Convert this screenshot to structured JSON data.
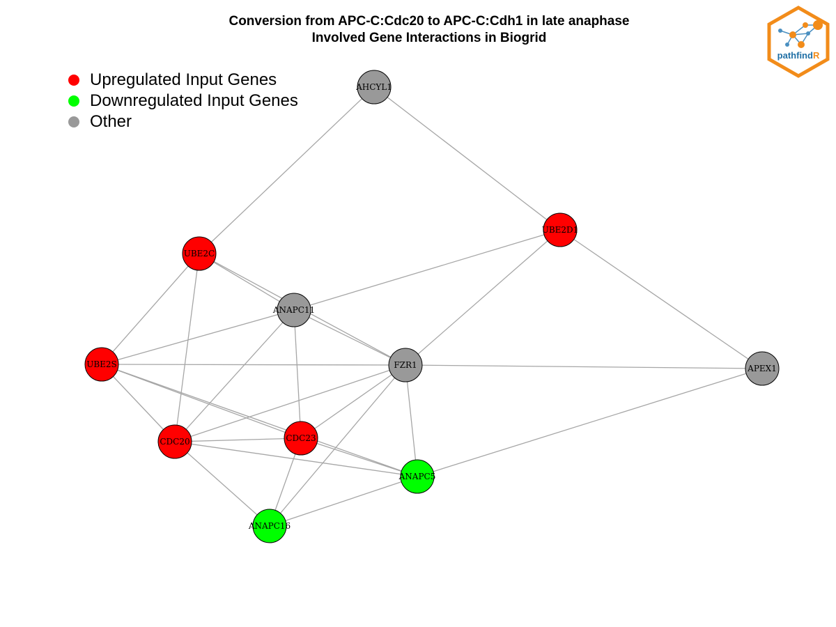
{
  "title": {
    "line1": "Conversion from APC-C:Cdc20 to APC-C:Cdh1 in late anaphase",
    "line2": "Involved Gene Interactions in Biogrid"
  },
  "legend": [
    {
      "label": "Upregulated Input Genes",
      "color": "#ff0000"
    },
    {
      "label": "Downregulated Input Genes",
      "color": "#00ff00"
    },
    {
      "label": "Other",
      "color": "#999999"
    }
  ],
  "colors": {
    "up": "#ff0000",
    "down": "#00ff00",
    "other": "#999999",
    "edge": "#a6a6a6",
    "node_border": "#000000"
  },
  "logo": {
    "text_main": "pathfind",
    "text_accent": "R",
    "accent_color": "#f28c1a",
    "text_color": "#1f6fa5"
  },
  "network": {
    "nodes": [
      {
        "id": "AHCYL1",
        "label": "AHCYL1",
        "group": "other"
      },
      {
        "id": "UBE2D1",
        "label": "UBE2D1",
        "group": "up"
      },
      {
        "id": "UBE2C",
        "label": "UBE2C",
        "group": "up"
      },
      {
        "id": "ANAPC11",
        "label": "ANAPC11",
        "group": "other"
      },
      {
        "id": "UBE2S",
        "label": "UBE2S",
        "group": "up"
      },
      {
        "id": "FZR1",
        "label": "FZR1",
        "group": "other"
      },
      {
        "id": "APEX1",
        "label": "APEX1",
        "group": "other"
      },
      {
        "id": "CDC20",
        "label": "CDC20",
        "group": "up"
      },
      {
        "id": "CDC23",
        "label": "CDC23",
        "group": "up"
      },
      {
        "id": "ANAPC5",
        "label": "ANAPC5",
        "group": "down"
      },
      {
        "id": "ANAPC16",
        "label": "ANAPC16",
        "group": "down"
      }
    ],
    "edges": [
      [
        "AHCYL1",
        "UBE2C"
      ],
      [
        "AHCYL1",
        "UBE2D1"
      ],
      [
        "UBE2D1",
        "ANAPC11"
      ],
      [
        "UBE2D1",
        "FZR1"
      ],
      [
        "UBE2D1",
        "APEX1"
      ],
      [
        "UBE2C",
        "ANAPC11"
      ],
      [
        "UBE2C",
        "FZR1"
      ],
      [
        "UBE2C",
        "UBE2S"
      ],
      [
        "UBE2C",
        "CDC20"
      ],
      [
        "ANAPC11",
        "UBE2S"
      ],
      [
        "ANAPC11",
        "FZR1"
      ],
      [
        "ANAPC11",
        "CDC20"
      ],
      [
        "ANAPC11",
        "CDC23"
      ],
      [
        "UBE2S",
        "FZR1"
      ],
      [
        "UBE2S",
        "CDC20"
      ],
      [
        "UBE2S",
        "CDC23"
      ],
      [
        "UBE2S",
        "ANAPC5"
      ],
      [
        "FZR1",
        "APEX1"
      ],
      [
        "FZR1",
        "CDC20"
      ],
      [
        "FZR1",
        "CDC23"
      ],
      [
        "FZR1",
        "ANAPC5"
      ],
      [
        "FZR1",
        "ANAPC16"
      ],
      [
        "APEX1",
        "ANAPC5"
      ],
      [
        "CDC20",
        "CDC23"
      ],
      [
        "CDC20",
        "ANAPC5"
      ],
      [
        "CDC20",
        "ANAPC16"
      ],
      [
        "CDC23",
        "ANAPC5"
      ],
      [
        "CDC23",
        "ANAPC16"
      ],
      [
        "ANAPC5",
        "ANAPC16"
      ]
    ]
  }
}
